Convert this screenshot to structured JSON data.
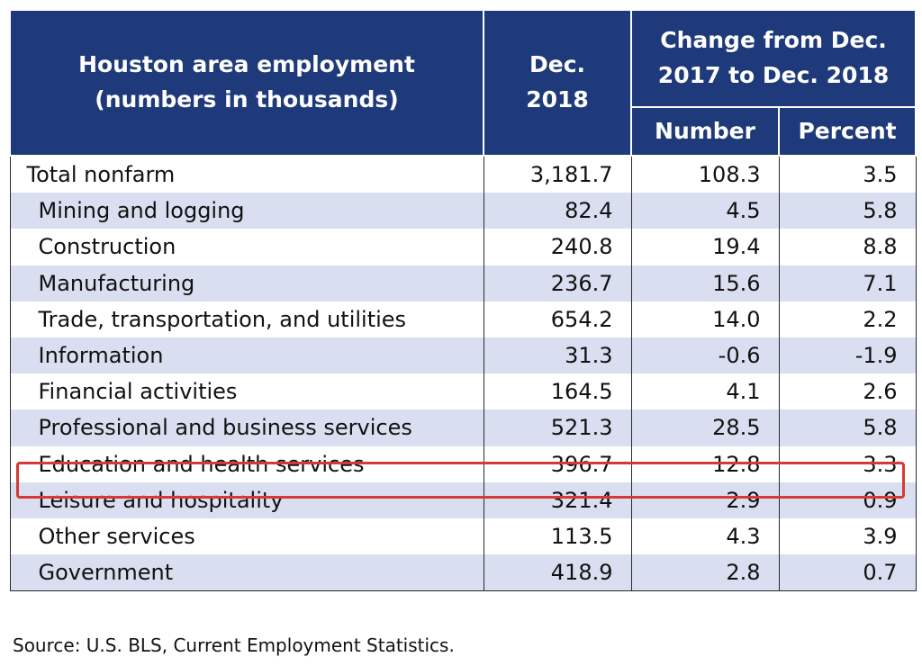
{
  "colors": {
    "header_bg": "#1f3a7a",
    "stripe_bg": "#d9dff0",
    "highlight_border": "#d63a34"
  },
  "table": {
    "title_line1": "Houston area employment",
    "title_line2": "(numbers in thousands)",
    "col_dec_line1": "Dec.",
    "col_dec_line2": "2018",
    "change_line1": "Change from Dec.",
    "change_line2": "2017 to Dec. 2018",
    "sub_number": "Number",
    "sub_percent": "Percent",
    "highlighted_row": "Education and health services",
    "rows": [
      {
        "label": "Total nonfarm",
        "dec2018": "3,181.7",
        "number": "108.3",
        "percent": "3.5"
      },
      {
        "label": "Mining and logging",
        "dec2018": "82.4",
        "number": "4.5",
        "percent": "5.8"
      },
      {
        "label": "Construction",
        "dec2018": "240.8",
        "number": "19.4",
        "percent": "8.8"
      },
      {
        "label": "Manufacturing",
        "dec2018": "236.7",
        "number": "15.6",
        "percent": "7.1"
      },
      {
        "label": "Trade, transportation, and utilities",
        "dec2018": "654.2",
        "number": "14.0",
        "percent": "2.2"
      },
      {
        "label": "Information",
        "dec2018": "31.3",
        "number": "-0.6",
        "percent": "-1.9"
      },
      {
        "label": "Financial activities",
        "dec2018": "164.5",
        "number": "4.1",
        "percent": "2.6"
      },
      {
        "label": "Professional and business services",
        "dec2018": "521.3",
        "number": "28.5",
        "percent": "5.8"
      },
      {
        "label": "Education and health services",
        "dec2018": "396.7",
        "number": "12.8",
        "percent": "3.3"
      },
      {
        "label": "Leisure and hospitality",
        "dec2018": "321.4",
        "number": "2.9",
        "percent": "0.9"
      },
      {
        "label": "Other services",
        "dec2018": "113.5",
        "number": "4.3",
        "percent": "3.9"
      },
      {
        "label": "Government",
        "dec2018": "418.9",
        "number": "2.8",
        "percent": "0.7"
      }
    ]
  },
  "source": "Source: U.S. BLS, Current Employment Statistics."
}
